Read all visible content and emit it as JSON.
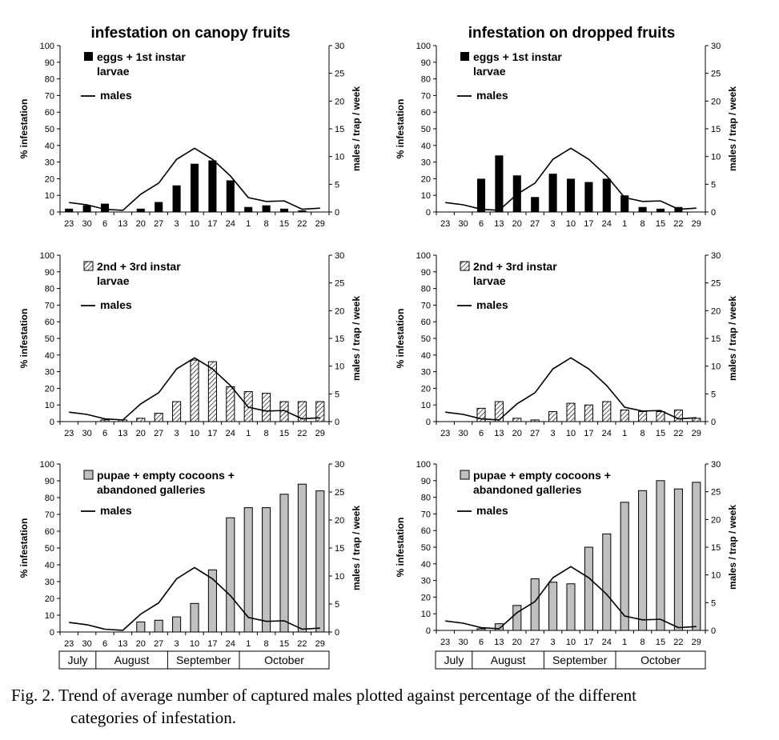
{
  "column_titles": [
    "infestation on canopy fruits",
    "infestation on dropped fruits"
  ],
  "month_labels": [
    "July",
    "August",
    "September",
    "October"
  ],
  "caption": {
    "line1": "Fig. 2. Trend of average number of captured males plotted against percentage of the different",
    "line2": "categories of infestation."
  },
  "colors": {
    "bar_black": "#000000",
    "bar_gray": "#c0c0c0",
    "line": "#000000"
  },
  "chart_data": [
    {
      "type": "bar",
      "title": "infestation on canopy fruits",
      "categories": [
        "23",
        "30",
        "6",
        "13",
        "20",
        "27",
        "3",
        "10",
        "17",
        "24",
        "1",
        "8",
        "15",
        "22",
        "29"
      ],
      "ylabel": "% infestation",
      "ylim": [
        0,
        100
      ],
      "yticks": [
        0,
        10,
        20,
        30,
        40,
        50,
        60,
        70,
        80,
        90,
        100
      ],
      "y2label": "males / trap / week",
      "y2lim": [
        0,
        30
      ],
      "y2ticks": [
        0,
        5,
        10,
        15,
        20,
        25,
        30
      ],
      "bar_style": "solid",
      "legend": {
        "bars": [
          "eggs + 1st instar",
          "larvae"
        ],
        "line": "males"
      },
      "series": [
        {
          "name": "eggs + 1st instar larvae",
          "axis": "left",
          "values": [
            2,
            4,
            5,
            0,
            2,
            6,
            16,
            29,
            31,
            19,
            3,
            4,
            2,
            1,
            0
          ]
        },
        {
          "name": "males",
          "axis": "right",
          "kind": "line",
          "values": [
            1.7,
            1.3,
            0.5,
            0.3,
            3.2,
            5.2,
            9.5,
            11.5,
            9.5,
            6.5,
            2.6,
            1.9,
            2.0,
            0.5,
            0.7
          ]
        }
      ]
    },
    {
      "type": "bar",
      "title": "infestation on dropped fruits",
      "categories": [
        "23",
        "30",
        "6",
        "13",
        "20",
        "27",
        "3",
        "10",
        "17",
        "24",
        "1",
        "8",
        "15",
        "22",
        "29"
      ],
      "ylabel": "% infestation",
      "ylim": [
        0,
        100
      ],
      "yticks": [
        0,
        10,
        20,
        30,
        40,
        50,
        60,
        70,
        80,
        90,
        100
      ],
      "y2label": "males / trap / week",
      "y2lim": [
        0,
        30
      ],
      "y2ticks": [
        0,
        5,
        10,
        15,
        20,
        25,
        30
      ],
      "bar_style": "solid",
      "legend": {
        "bars": [
          "eggs + 1st instar",
          "larvae"
        ],
        "line": "males"
      },
      "series": [
        {
          "name": "eggs + 1st instar larvae",
          "axis": "left",
          "values": [
            0,
            0,
            20,
            34,
            22,
            9,
            23,
            20,
            18,
            20,
            10,
            3,
            2,
            3,
            0
          ]
        },
        {
          "name": "males",
          "axis": "right",
          "kind": "line",
          "values": [
            1.7,
            1.3,
            0.5,
            0.3,
            3.2,
            5.2,
            9.5,
            11.5,
            9.5,
            6.5,
            2.6,
            1.9,
            2.0,
            0.5,
            0.7
          ]
        }
      ]
    },
    {
      "type": "bar",
      "categories": [
        "23",
        "30",
        "6",
        "13",
        "20",
        "27",
        "3",
        "10",
        "17",
        "24",
        "1",
        "8",
        "15",
        "22",
        "29"
      ],
      "ylabel": "% infestation",
      "ylim": [
        0,
        100
      ],
      "yticks": [
        0,
        10,
        20,
        30,
        40,
        50,
        60,
        70,
        80,
        90,
        100
      ],
      "y2label": "males / trap / week",
      "y2lim": [
        0,
        30
      ],
      "y2ticks": [
        0,
        5,
        10,
        15,
        20,
        25,
        30
      ],
      "bar_style": "hatched",
      "legend": {
        "bars": [
          "2nd + 3rd instar",
          "larvae"
        ],
        "line": "males"
      },
      "series": [
        {
          "name": "2nd + 3rd instar larvae",
          "axis": "left",
          "values": [
            0,
            0,
            1,
            1,
            2,
            5,
            12,
            37,
            36,
            21,
            18,
            17,
            12,
            12,
            12
          ]
        },
        {
          "name": "males",
          "axis": "right",
          "kind": "line",
          "values": [
            1.7,
            1.3,
            0.5,
            0.3,
            3.2,
            5.2,
            9.5,
            11.5,
            9.5,
            6.5,
            2.6,
            1.9,
            2.0,
            0.5,
            0.7
          ]
        }
      ]
    },
    {
      "type": "bar",
      "categories": [
        "23",
        "30",
        "6",
        "13",
        "20",
        "27",
        "3",
        "10",
        "17",
        "24",
        "1",
        "8",
        "15",
        "22",
        "29"
      ],
      "ylabel": "% infestation",
      "ylim": [
        0,
        100
      ],
      "yticks": [
        0,
        10,
        20,
        30,
        40,
        50,
        60,
        70,
        80,
        90,
        100
      ],
      "y2label": "males / trap / week",
      "y2lim": [
        0,
        30
      ],
      "y2ticks": [
        0,
        5,
        10,
        15,
        20,
        25,
        30
      ],
      "bar_style": "hatched",
      "legend": {
        "bars": [
          "2nd + 3rd instar",
          "larvae"
        ],
        "line": "males"
      },
      "series": [
        {
          "name": "2nd + 3rd instar larvae",
          "axis": "left",
          "values": [
            0,
            0,
            8,
            12,
            2,
            1,
            6,
            11,
            10,
            12,
            7,
            6,
            6,
            7,
            2
          ]
        },
        {
          "name": "males",
          "axis": "right",
          "kind": "line",
          "values": [
            1.7,
            1.3,
            0.5,
            0.3,
            3.2,
            5.2,
            9.5,
            11.5,
            9.5,
            6.5,
            2.6,
            1.9,
            2.0,
            0.5,
            0.7
          ]
        }
      ]
    },
    {
      "type": "bar",
      "categories": [
        "23",
        "30",
        "6",
        "13",
        "20",
        "27",
        "3",
        "10",
        "17",
        "24",
        "1",
        "8",
        "15",
        "22",
        "29"
      ],
      "ylabel": "% infestation",
      "ylim": [
        0,
        100
      ],
      "yticks": [
        0,
        10,
        20,
        30,
        40,
        50,
        60,
        70,
        80,
        90,
        100
      ],
      "y2label": "males / trap / week",
      "y2lim": [
        0,
        30
      ],
      "y2ticks": [
        0,
        5,
        10,
        15,
        20,
        25,
        30
      ],
      "bar_style": "gray",
      "legend": {
        "bars": [
          "pupae + empty cocoons +",
          "abandoned galleries"
        ],
        "line": "males"
      },
      "series": [
        {
          "name": "pupae + empty cocoons + abandoned galleries",
          "axis": "left",
          "values": [
            0,
            0,
            0,
            0,
            6,
            7,
            9,
            17,
            37,
            68,
            74,
            74,
            82,
            88,
            84
          ]
        },
        {
          "name": "males",
          "axis": "right",
          "kind": "line",
          "values": [
            1.7,
            1.3,
            0.5,
            0.3,
            3.2,
            5.2,
            9.5,
            11.5,
            9.5,
            6.5,
            2.6,
            1.9,
            2.0,
            0.5,
            0.7
          ]
        }
      ]
    },
    {
      "type": "bar",
      "categories": [
        "23",
        "30",
        "6",
        "13",
        "20",
        "27",
        "3",
        "10",
        "17",
        "24",
        "1",
        "8",
        "15",
        "22",
        "29"
      ],
      "ylabel": "% infestation",
      "ylim": [
        0,
        100
      ],
      "yticks": [
        0,
        10,
        20,
        30,
        40,
        50,
        60,
        70,
        80,
        90,
        100
      ],
      "y2label": "males / trap / week",
      "y2lim": [
        0,
        30
      ],
      "y2ticks": [
        0,
        5,
        10,
        15,
        20,
        25,
        30
      ],
      "bar_style": "gray",
      "legend": {
        "bars": [
          "pupae + empty cocoons +",
          "abandoned galleries"
        ],
        "line": "males"
      },
      "series": [
        {
          "name": "pupae + empty cocoons + abandoned galleries",
          "axis": "left",
          "values": [
            0,
            0,
            1,
            4,
            15,
            31,
            29,
            28,
            50,
            58,
            77,
            84,
            90,
            85,
            89
          ]
        },
        {
          "name": "males",
          "axis": "right",
          "kind": "line",
          "values": [
            1.7,
            1.3,
            0.5,
            0.3,
            3.2,
            5.2,
            9.5,
            11.5,
            9.5,
            6.5,
            2.6,
            1.9,
            2.0,
            0.5,
            0.7
          ]
        }
      ]
    }
  ]
}
